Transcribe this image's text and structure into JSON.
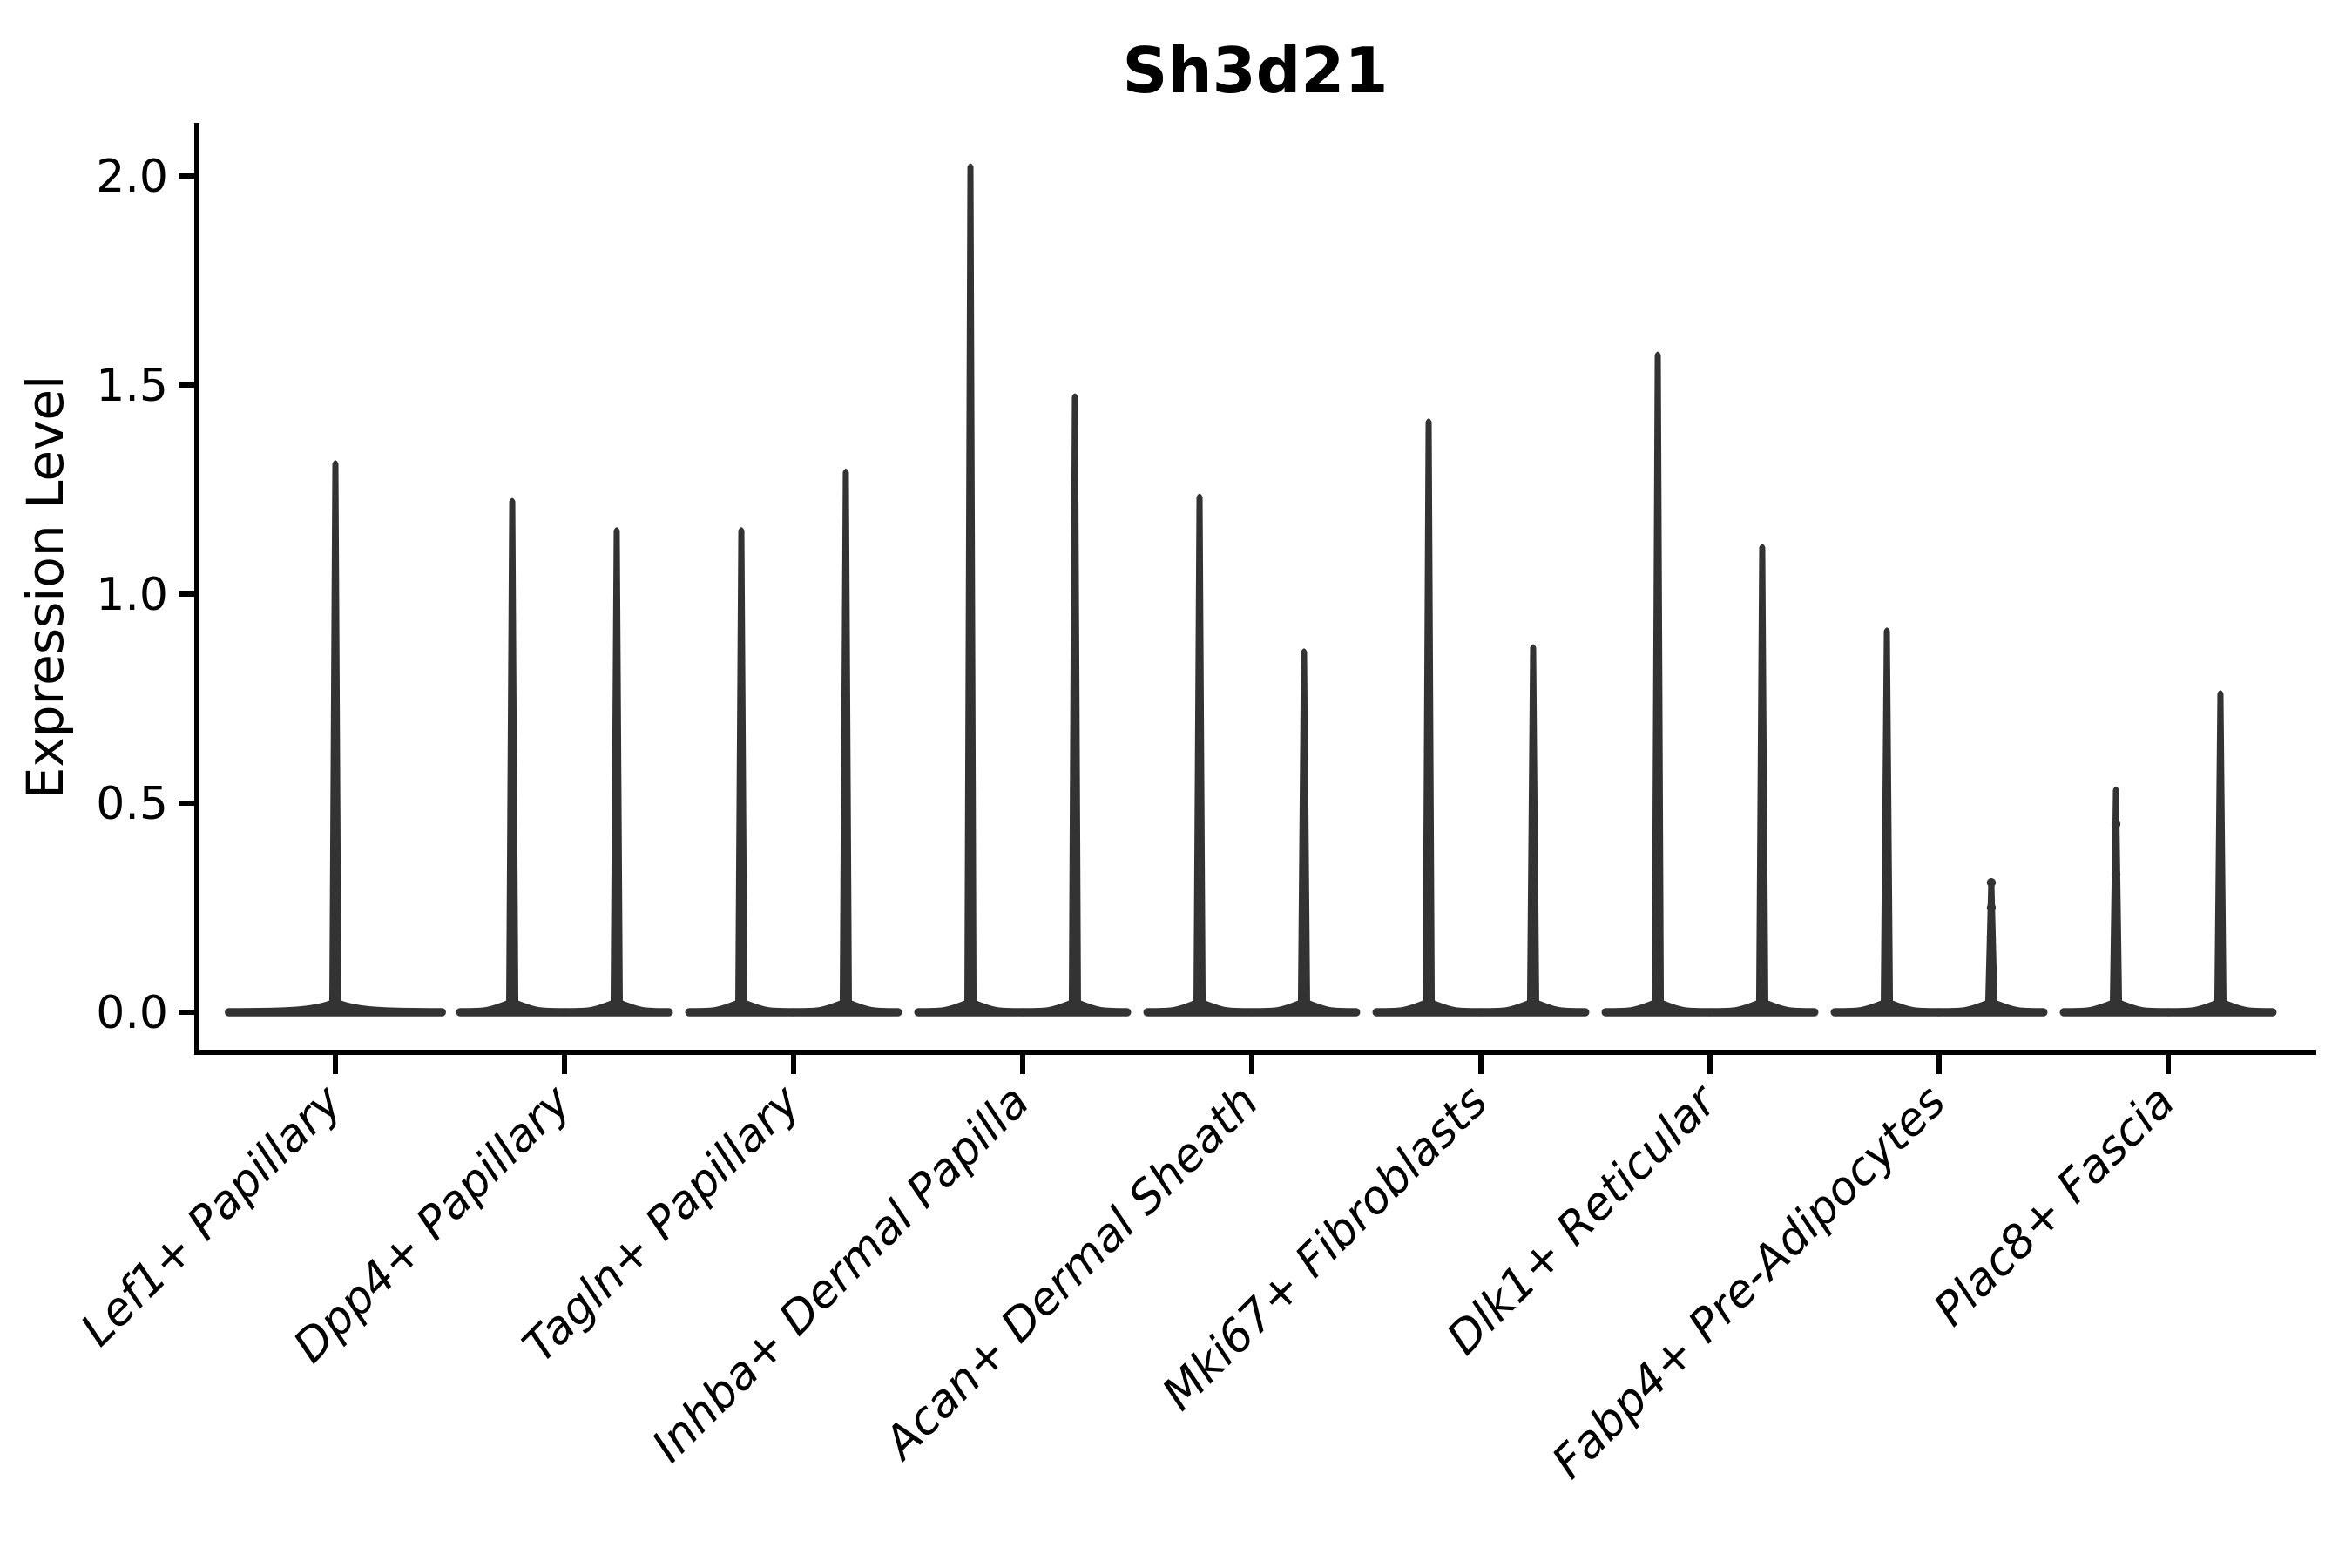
{
  "chart_data": {
    "type": "violin",
    "title": "Sh3d21",
    "xlabel": "",
    "ylabel": "Expression Level",
    "ylim": [
      -0.09,
      2.13
    ],
    "yticks": [
      0.0,
      0.5,
      1.0,
      1.5,
      2.0
    ],
    "ytick_labels": [
      "0.0",
      "0.5",
      "1.0",
      "1.5",
      "2.0"
    ],
    "grid": false,
    "legend": "none",
    "categories": [
      "Lef1+ Papillary",
      "Dpp4+ Papillary",
      "Tagln+ Papillary",
      "Inhba+ Dermal Papilla",
      "Acan+ Dermal Sheath",
      "Mki67+ Fibroblasts",
      "Dlk1+ Reticular",
      "Fabp4+ Pre-Adipocytes",
      "Plac8+ Fascia"
    ],
    "groups": [
      {
        "label": "Lef1+ Papillary",
        "violins": [
          {
            "offset": 0.0,
            "width": 0.93,
            "zero_peak": true,
            "max": 1.32,
            "dots": []
          }
        ]
      },
      {
        "label": "Dpp4+ Papillary",
        "violins": [
          {
            "offset": -0.228,
            "width": 0.455,
            "zero_peak": true,
            "max": 1.23,
            "dots": []
          },
          {
            "offset": 0.228,
            "width": 0.455,
            "zero_peak": true,
            "max": 1.16,
            "dots": []
          }
        ]
      },
      {
        "label": "Tagln+ Papillary",
        "violins": [
          {
            "offset": -0.228,
            "width": 0.455,
            "zero_peak": true,
            "max": 1.16,
            "dots": []
          },
          {
            "offset": 0.228,
            "width": 0.455,
            "zero_peak": true,
            "max": 1.3,
            "dots": []
          }
        ]
      },
      {
        "label": "Inhba+ Dermal Papilla",
        "violins": [
          {
            "offset": -0.228,
            "width": 0.455,
            "zero_peak": true,
            "max": 2.03,
            "dots": []
          },
          {
            "offset": 0.228,
            "width": 0.455,
            "zero_peak": true,
            "max": 1.48,
            "dots": []
          }
        ]
      },
      {
        "label": "Acan+ Dermal Sheath",
        "violins": [
          {
            "offset": -0.228,
            "width": 0.455,
            "zero_peak": true,
            "max": 1.24,
            "dots": [
              0.05,
              0.11,
              0.19,
              0.27
            ]
          },
          {
            "offset": 0.228,
            "width": 0.455,
            "zero_peak": true,
            "max": 0.87,
            "dots": []
          }
        ]
      },
      {
        "label": "Mki67+ Fibroblasts",
        "violins": [
          {
            "offset": -0.228,
            "width": 0.455,
            "zero_peak": true,
            "max": 1.42,
            "dots": []
          },
          {
            "offset": 0.228,
            "width": 0.455,
            "zero_peak": true,
            "max": 0.88,
            "dots": []
          }
        ]
      },
      {
        "label": "Dlk1+ Reticular",
        "violins": [
          {
            "offset": -0.228,
            "width": 0.455,
            "zero_peak": true,
            "max": 1.58,
            "dots": []
          },
          {
            "offset": 0.228,
            "width": 0.455,
            "zero_peak": true,
            "max": 1.12,
            "dots": []
          }
        ]
      },
      {
        "label": "Fabp4+ Pre-Adipocytes",
        "violins": [
          {
            "offset": -0.228,
            "width": 0.455,
            "zero_peak": true,
            "max": 0.92,
            "dots": []
          },
          {
            "offset": 0.228,
            "width": 0.455,
            "zero_peak": true,
            "max": 0.32,
            "dots": [
              0.05,
              0.11,
              0.18,
              0.25,
              0.31
            ]
          }
        ]
      },
      {
        "label": "Plac8+ Fascia",
        "violins": [
          {
            "offset": -0.228,
            "width": 0.455,
            "zero_peak": true,
            "max": 0.54,
            "dots": [
              0.07,
              0.14,
              0.22,
              0.33,
              0.45
            ]
          },
          {
            "offset": 0.228,
            "width": 0.455,
            "zero_peak": true,
            "max": 0.77,
            "dots": [
              0.12,
              0.3
            ]
          }
        ]
      }
    ],
    "colors": {
      "violin": "#333333",
      "axis": "#000000",
      "text": "#000000",
      "background": "#ffffff"
    }
  }
}
